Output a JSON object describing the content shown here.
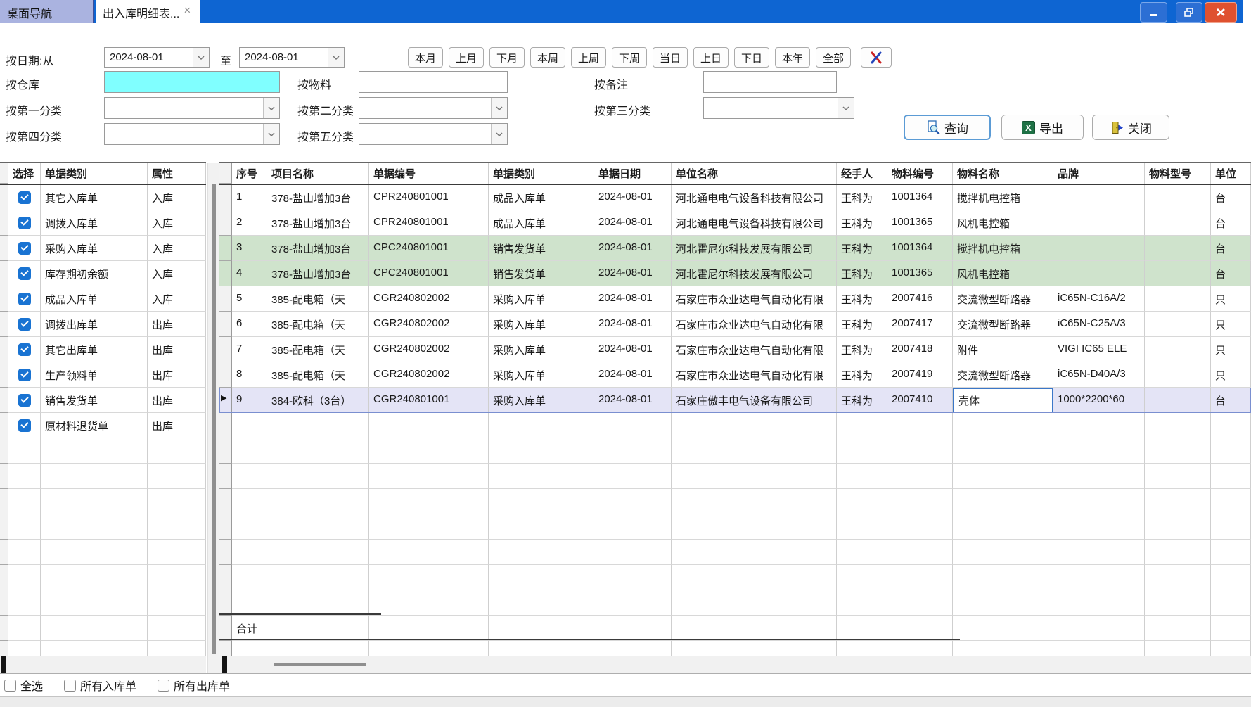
{
  "titlebar": {
    "tabs": [
      {
        "label": "桌面导航",
        "active": false
      },
      {
        "label": "出入库明细表...",
        "active": true,
        "close_icon": "×"
      }
    ]
  },
  "filters": {
    "date_label": "按日期:从",
    "date_to_label": "至",
    "date_from": "2024-08-01",
    "date_to": "2024-08-01",
    "warehouse_label": "按仓库",
    "warehouse_value": "",
    "material_label": "按物料",
    "material_value": "",
    "remark_label": "按备注",
    "remark_value": "",
    "cat1_label": "按第一分类",
    "cat2_label": "按第二分类",
    "cat3_label": "按第三分类",
    "cat4_label": "按第四分类",
    "cat5_label": "按第五分类",
    "cat_selected": ""
  },
  "quick_dates": [
    "本月",
    "上月",
    "下月",
    "本周",
    "上周",
    "下周",
    "当日",
    "上日",
    "下日",
    "本年",
    "全部"
  ],
  "actions": {
    "query": "查询",
    "export": "导出",
    "close": "关闭"
  },
  "left_panel": {
    "headers": [
      "选择",
      "单据类别",
      "属性"
    ],
    "rows": [
      {
        "checked": true,
        "type": "其它入库单",
        "attr": "入库"
      },
      {
        "checked": true,
        "type": "调拨入库单",
        "attr": "入库"
      },
      {
        "checked": true,
        "type": "采购入库单",
        "attr": "入库"
      },
      {
        "checked": true,
        "type": "库存期初余额",
        "attr": "入库"
      },
      {
        "checked": true,
        "type": "成品入库单",
        "attr": "入库"
      },
      {
        "checked": true,
        "type": "调拨出库单",
        "attr": "出库"
      },
      {
        "checked": true,
        "type": "其它出库单",
        "attr": "出库"
      },
      {
        "checked": true,
        "type": "生产领料单",
        "attr": "出库"
      },
      {
        "checked": true,
        "type": "销售发货单",
        "attr": "出库"
      },
      {
        "checked": true,
        "type": "原材料退货单",
        "attr": "出库"
      }
    ]
  },
  "main_table": {
    "headers": [
      "序号",
      "项目名称",
      "单据编号",
      "单据类别",
      "单据日期",
      "单位名称",
      "经手人",
      "物料编号",
      "物料名称",
      "品牌",
      "物料型号",
      "单位"
    ],
    "rows": [
      {
        "bg": "none",
        "cells": [
          "1",
          "378-盐山增加3台",
          "CPR240801001",
          "成品入库单",
          "2024-08-01",
          "河北通电电气设备科技有限公司",
          "王科为",
          "1001364",
          "搅拌机电控箱",
          "",
          "",
          "台"
        ]
      },
      {
        "bg": "none",
        "cells": [
          "2",
          "378-盐山增加3台",
          "CPR240801001",
          "成品入库单",
          "2024-08-01",
          "河北通电电气设备科技有限公司",
          "王科为",
          "1001365",
          "风机电控箱",
          "",
          "",
          "台"
        ]
      },
      {
        "bg": "green",
        "cells": [
          "3",
          "378-盐山增加3台",
          "CPC240801001",
          "销售发货单",
          "2024-08-01",
          "河北霍尼尔科技发展有限公司",
          "王科为",
          "1001364",
          "搅拌机电控箱",
          "",
          "",
          "台"
        ]
      },
      {
        "bg": "green",
        "cells": [
          "4",
          "378-盐山增加3台",
          "CPC240801001",
          "销售发货单",
          "2024-08-01",
          "河北霍尼尔科技发展有限公司",
          "王科为",
          "1001365",
          "风机电控箱",
          "",
          "",
          "台"
        ]
      },
      {
        "bg": "none",
        "cells": [
          "5",
          "385-配电箱（天",
          "CGR240802002",
          "采购入库单",
          "2024-08-01",
          "石家庄市众业达电气自动化有限",
          "王科为",
          "2007416",
          "交流微型断路器",
          "iC65N-C16A/2",
          "",
          "只"
        ]
      },
      {
        "bg": "none",
        "cells": [
          "6",
          "385-配电箱（天",
          "CGR240802002",
          "采购入库单",
          "2024-08-01",
          "石家庄市众业达电气自动化有限",
          "王科为",
          "2007417",
          "交流微型断路器",
          "iC65N-C25A/3",
          "",
          "只"
        ]
      },
      {
        "bg": "none",
        "cells": [
          "7",
          "385-配电箱（天",
          "CGR240802002",
          "采购入库单",
          "2024-08-01",
          "石家庄市众业达电气自动化有限",
          "王科为",
          "2007418",
          "附件",
          "VIGI IC65 ELE",
          "",
          "只"
        ]
      },
      {
        "bg": "none",
        "cells": [
          "8",
          "385-配电箱（天",
          "CGR240802002",
          "采购入库单",
          "2024-08-01",
          "石家庄市众业达电气自动化有限",
          "王科为",
          "2007419",
          "交流微型断路器",
          "iC65N-D40A/3",
          "",
          "只"
        ]
      },
      {
        "bg": "selected",
        "selected_cell": 8,
        "cells": [
          "9",
          "384-欧科（3台）",
          "CGR240801001",
          "采购入库单",
          "2024-08-01",
          "石家庄傲丰电气设备有限公司",
          "王科为",
          "2007410",
          "壳体",
          "1000*2200*60",
          "",
          "台"
        ]
      }
    ],
    "footer_label": "合计"
  },
  "bottom_bar": {
    "checkboxes": [
      {
        "label": "全选",
        "checked": false
      },
      {
        "label": "所有入库单",
        "checked": false
      },
      {
        "label": "所有出库单",
        "checked": false
      }
    ]
  },
  "colors": {
    "titlebar": "#0e65d2",
    "tab_inactive": "#aab3e0",
    "close_red": "#df512f",
    "cyan_field": "#80ffff",
    "green_row": "#cfe3cc",
    "selected_row": "#e4e4f6",
    "checkbox_blue": "#1973d2",
    "excel_green": "#1e7145",
    "accent_blue": "#5b9bd5"
  }
}
